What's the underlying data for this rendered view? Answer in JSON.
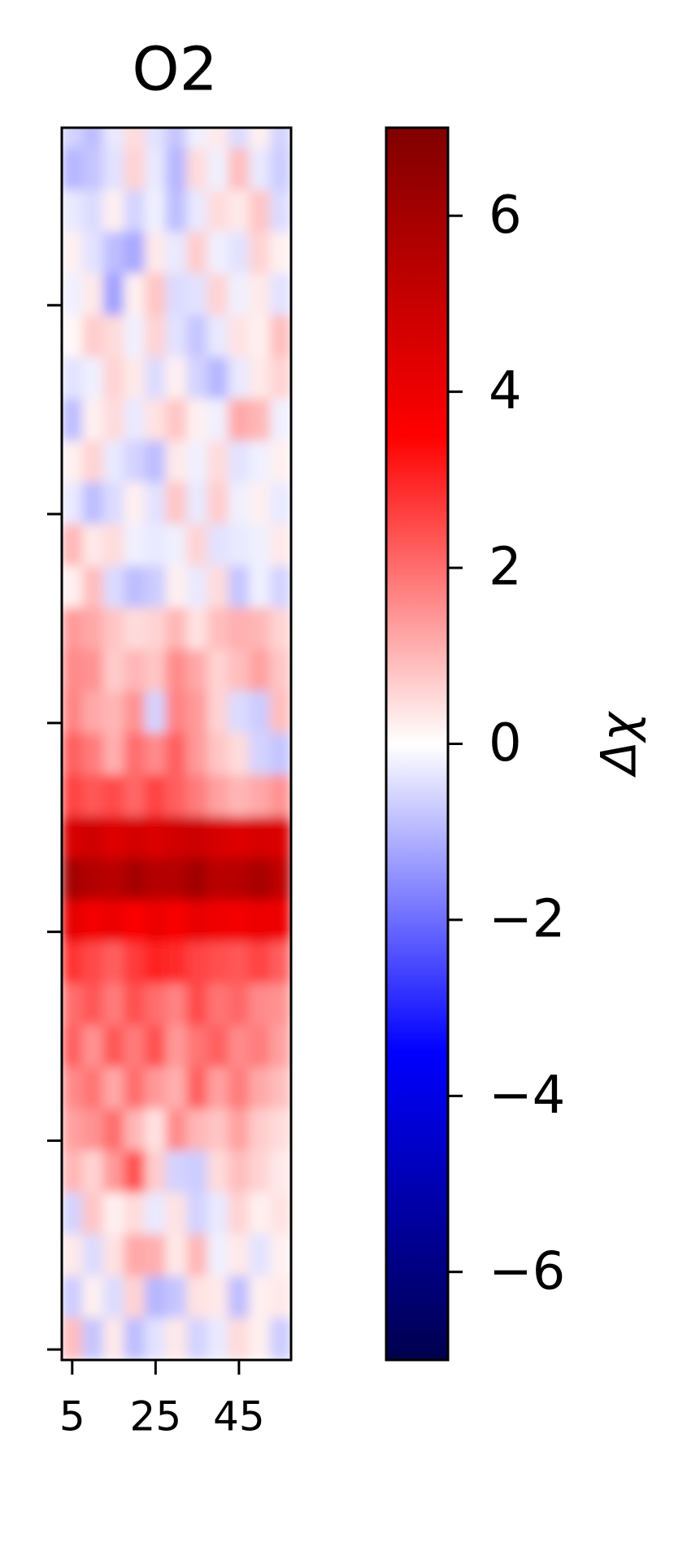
{
  "chart_data": {
    "type": "heatmap",
    "title": "O2",
    "x": [
      5,
      10,
      15,
      20,
      25,
      30,
      35,
      40,
      45,
      50,
      55
    ],
    "y": [
      292.5,
      282.5,
      272.5,
      262.5,
      252.5,
      242.5,
      232.5,
      222.5,
      212.5,
      202.5,
      192.5,
      182.5,
      172.5,
      162.5,
      152.5,
      142.5,
      132.5,
      122.5,
      112.5,
      102.5,
      92.5,
      82.5,
      72.5,
      62.5,
      52.5,
      42.5,
      32.5,
      22.5,
      12.5,
      2.5
    ],
    "z": [
      [
        -0.6,
        -0.9,
        -0.3,
        0.5,
        -0.4,
        -0.8,
        -0.2,
        0.3,
        -0.5,
        0.2,
        -0.6
      ],
      [
        -1.0,
        -0.8,
        -0.4,
        0.6,
        -0.3,
        -1.0,
        0.5,
        -0.2,
        0.9,
        -0.3,
        -0.7
      ],
      [
        -0.3,
        -0.5,
        0.2,
        -0.6,
        -0.2,
        -0.9,
        -0.3,
        0.5,
        0.3,
        0.8,
        -0.5
      ],
      [
        0.2,
        -0.4,
        -0.9,
        -1.2,
        0.3,
        -0.3,
        0.7,
        -0.2,
        -0.4,
        0.6,
        0.2
      ],
      [
        -0.2,
        0.3,
        -1.3,
        0.2,
        0.8,
        -0.5,
        -0.4,
        0.6,
        -0.2,
        0.3,
        -0.4
      ],
      [
        0.1,
        0.7,
        0.5,
        -0.2,
        0.6,
        -0.4,
        -0.8,
        -0.3,
        0.4,
        0.2,
        0.9
      ],
      [
        -0.4,
        -0.2,
        0.6,
        0.3,
        -0.5,
        0.2,
        -0.6,
        -1.0,
        -0.3,
        0.3,
        0.6
      ],
      [
        -0.9,
        0.2,
        0.5,
        -0.3,
        0.4,
        0.8,
        0.2,
        -0.2,
        1.2,
        1.0,
        -0.2
      ],
      [
        0.2,
        0.6,
        -0.3,
        -0.6,
        -0.9,
        0.3,
        -0.2,
        0.5,
        -0.4,
        -0.2,
        0.2
      ],
      [
        -0.3,
        -0.9,
        -0.5,
        0.2,
        -0.4,
        0.8,
        -0.3,
        0.7,
        -0.2,
        0.2,
        -0.3
      ],
      [
        1.0,
        0.3,
        0.5,
        -0.2,
        -0.3,
        -0.2,
        0.6,
        -0.4,
        -0.3,
        -0.2,
        0.3
      ],
      [
        0.2,
        0.9,
        -0.5,
        -0.9,
        -0.7,
        0.2,
        -0.3,
        0.5,
        -0.8,
        -0.2,
        -0.6
      ],
      [
        1.4,
        1.2,
        0.8,
        0.5,
        0.6,
        1.0,
        0.4,
        0.9,
        1.1,
        1.0,
        0.6
      ],
      [
        1.6,
        1.5,
        0.7,
        1.0,
        0.8,
        1.6,
        1.2,
        0.6,
        0.9,
        1.3,
        0.8
      ],
      [
        1.7,
        1.2,
        1.0,
        1.5,
        -0.6,
        1.7,
        1.4,
        0.6,
        -0.5,
        -0.7,
        0.9
      ],
      [
        2.2,
        1.8,
        1.1,
        2.0,
        1.6,
        2.2,
        1.4,
        0.8,
        0.5,
        -0.6,
        -0.8
      ],
      [
        2.6,
        2.3,
        2.5,
        2.1,
        2.6,
        2.2,
        1.8,
        1.3,
        1.0,
        1.2,
        1.5
      ],
      [
        4.6,
        4.8,
        4.4,
        4.7,
        4.5,
        4.8,
        4.9,
        4.6,
        4.4,
        4.6,
        4.5
      ],
      [
        6.0,
        5.6,
        5.4,
        6.0,
        5.5,
        5.6,
        6.1,
        5.4,
        5.5,
        5.9,
        5.3
      ],
      [
        4.2,
        3.8,
        4.0,
        3.6,
        4.0,
        3.7,
        4.1,
        3.9,
        3.8,
        4.0,
        3.9
      ],
      [
        2.8,
        2.5,
        2.2,
        2.7,
        3.0,
        2.9,
        2.6,
        2.4,
        2.3,
        2.6,
        2.2
      ],
      [
        2.0,
        2.3,
        1.8,
        2.4,
        2.0,
        1.7,
        2.5,
        1.9,
        2.1,
        1.6,
        1.5
      ],
      [
        2.2,
        1.5,
        2.3,
        1.8,
        2.4,
        1.4,
        1.9,
        2.2,
        1.6,
        1.8,
        1.3
      ],
      [
        1.6,
        1.9,
        1.2,
        2.0,
        1.4,
        1.1,
        2.2,
        1.3,
        1.8,
        1.2,
        0.9
      ],
      [
        1.3,
        1.5,
        2.0,
        1.0,
        0.4,
        1.6,
        1.0,
        0.8,
        1.3,
        0.7,
        0.5
      ],
      [
        1.0,
        0.6,
        1.4,
        2.4,
        0.7,
        -0.6,
        -0.7,
        0.5,
        0.9,
        0.6,
        0.3
      ],
      [
        -0.6,
        0.8,
        0.2,
        0.5,
        -0.3,
        0.4,
        -0.6,
        -0.3,
        0.6,
        0.2,
        0.4
      ],
      [
        0.3,
        -0.5,
        0.4,
        1.2,
        1.1,
        0.3,
        1.0,
        -0.2,
        0.3,
        -0.4,
        0.2
      ],
      [
        -0.7,
        0.2,
        -0.5,
        0.6,
        -1.0,
        -0.8,
        0.4,
        0.3,
        -0.9,
        0.2,
        0.3
      ],
      [
        0.9,
        -0.8,
        0.3,
        -0.9,
        -0.4,
        0.3,
        -0.6,
        -0.3,
        0.5,
        0.2,
        -0.7
      ]
    ],
    "xlim": [
      2.5,
      57.5
    ],
    "xticks": [
      5,
      25,
      45
    ],
    "ylim": [
      -2.5,
      292.5
    ],
    "yticks": [
      0,
      50,
      100,
      150,
      200,
      250
    ],
    "clim": [
      -7,
      7
    ],
    "cticks": [
      {
        "value": -6,
        "label": "−6"
      },
      {
        "value": -4,
        "label": "−4"
      },
      {
        "value": -2,
        "label": "−2"
      },
      0,
      2,
      4,
      6
    ],
    "colorbar_label": "Δχ",
    "cmap": [
      "#00004d",
      "#0000ff",
      "#ffffff",
      "#ff0000",
      "#800000"
    ]
  }
}
